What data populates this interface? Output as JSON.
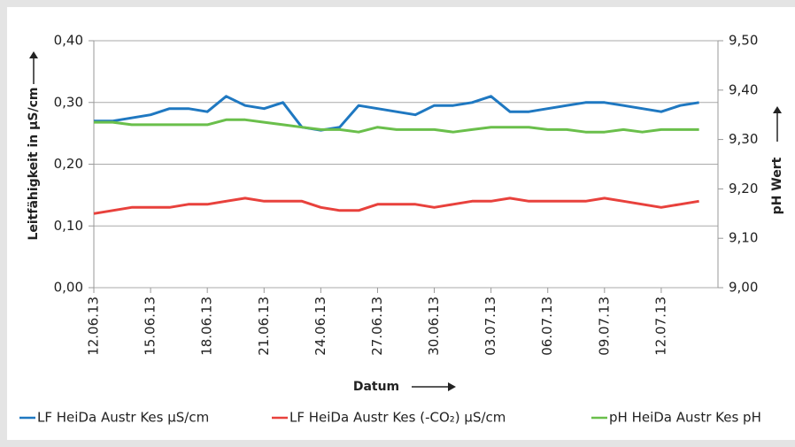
{
  "chart_data": {
    "type": "line",
    "x_label": "Datum",
    "y_label": "Leitfähigkeit in µS/cm",
    "y2_label": "pH Wert",
    "x": [
      "12.06.13",
      "13.06.13",
      "14.06.13",
      "15.06.13",
      "16.06.13",
      "17.06.13",
      "18.06.13",
      "19.06.13",
      "20.06.13",
      "21.06.13",
      "22.06.13",
      "23.06.13",
      "24.06.13",
      "25.06.13",
      "26.06.13",
      "27.06.13",
      "28.06.13",
      "29.06.13",
      "30.06.13",
      "01.07.13",
      "02.07.13",
      "03.07.13",
      "04.07.13",
      "05.07.13",
      "06.07.13",
      "07.07.13",
      "08.07.13",
      "09.07.13",
      "10.07.13",
      "11.07.13",
      "12.07.13",
      "13.07.13",
      "14.07.13"
    ],
    "xlim": [
      "12.06.13",
      "15.07.13"
    ],
    "xticks": [
      "12.06.13",
      "15.06.13",
      "18.06.13",
      "21.06.13",
      "24.06.13",
      "27.06.13",
      "30.06.13",
      "03.07.13",
      "06.07.13",
      "09.07.13",
      "12.07.13"
    ],
    "ylim": [
      0,
      0.4
    ],
    "yticks": [
      {
        "value": 0,
        "label": "0,00"
      },
      {
        "value": 0.1,
        "label": "0,10"
      },
      {
        "value": 0.2,
        "label": "0,20"
      },
      {
        "value": 0.3,
        "label": "0,30"
      },
      {
        "value": 0.4,
        "label": "0,40"
      }
    ],
    "y2lim": [
      9.0,
      9.5
    ],
    "y2ticks": [
      {
        "value": 9.0,
        "label": "9,00"
      },
      {
        "value": 9.1,
        "label": "9,10"
      },
      {
        "value": 9.2,
        "label": "9,20"
      },
      {
        "value": 9.3,
        "label": "9,30"
      },
      {
        "value": 9.4,
        "label": "9,40"
      },
      {
        "value": 9.5,
        "label": "9,50"
      }
    ],
    "grid": true,
    "series": [
      {
        "name": "LF HeiDa Austr Kes µS/cm",
        "color": "#1f78c1",
        "values": [
          0.27,
          0.27,
          0.275,
          0.28,
          0.29,
          0.29,
          0.285,
          0.31,
          0.295,
          0.29,
          0.3,
          0.26,
          0.255,
          0.26,
          0.295,
          0.29,
          0.285,
          0.28,
          0.295,
          0.295,
          0.3,
          0.31,
          0.285,
          0.285,
          0.29,
          0.295,
          0.3,
          0.3,
          0.295,
          0.29,
          0.285,
          0.295,
          0.3
        ]
      },
      {
        "name": "LF HeiDa Austr Kes (-CO₂) µS/cm",
        "color": "#e8413c",
        "values": [
          0.12,
          0.125,
          0.13,
          0.13,
          0.13,
          0.135,
          0.135,
          0.14,
          0.145,
          0.14,
          0.14,
          0.14,
          0.13,
          0.125,
          0.125,
          0.135,
          0.135,
          0.135,
          0.13,
          0.135,
          0.14,
          0.14,
          0.145,
          0.14,
          0.14,
          0.14,
          0.14,
          0.145,
          0.14,
          0.135,
          0.13,
          0.135,
          0.14
        ]
      },
      {
        "name": "pH HeiDa Austr Kes pH",
        "color": "#6abf4b",
        "axis": "y2",
        "values": [
          9.335,
          9.335,
          9.33,
          9.33,
          9.33,
          9.33,
          9.33,
          9.34,
          9.34,
          9.335,
          9.33,
          9.325,
          9.32,
          9.32,
          9.315,
          9.325,
          9.32,
          9.32,
          9.32,
          9.315,
          9.32,
          9.325,
          9.325,
          9.325,
          9.32,
          9.32,
          9.315,
          9.315,
          9.32,
          9.315,
          9.32,
          9.32,
          9.32
        ]
      }
    ]
  }
}
